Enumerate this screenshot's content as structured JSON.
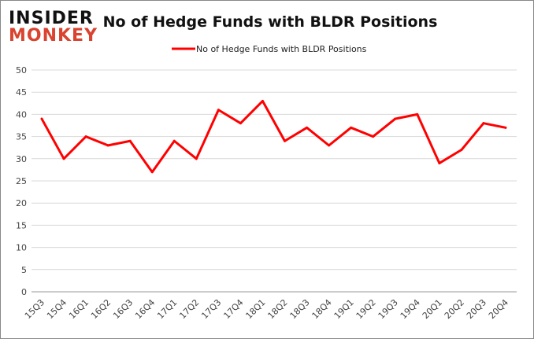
{
  "logo": {
    "line1": "INSIDER",
    "line2": "MONKEY"
  },
  "chart_data": {
    "type": "line",
    "title": "No of Hedge Funds with BLDR Positions",
    "xlabel": "",
    "ylabel": "",
    "categories": [
      "15Q3",
      "15Q4",
      "16Q1",
      "16Q2",
      "16Q3",
      "16Q4",
      "17Q1",
      "17Q2",
      "17Q3",
      "17Q4",
      "18Q1",
      "18Q2",
      "18Q3",
      "18Q4",
      "19Q1",
      "19Q2",
      "19Q3",
      "19Q4",
      "20Q1",
      "20Q2",
      "20Q3",
      "20Q4"
    ],
    "series": [
      {
        "name": "No of Hedge Funds with BLDR Positions",
        "color": "#ff0000",
        "values": [
          39,
          30,
          35,
          33,
          34,
          27,
          34,
          30,
          41,
          38,
          43,
          34,
          37,
          33,
          37,
          35,
          39,
          40,
          29,
          32,
          38,
          37
        ]
      }
    ],
    "ylim": [
      0,
      50
    ],
    "yticks": [
      0,
      5,
      10,
      15,
      20,
      25,
      30,
      35,
      40,
      45,
      50
    ],
    "grid": true,
    "legend": "top-center"
  }
}
